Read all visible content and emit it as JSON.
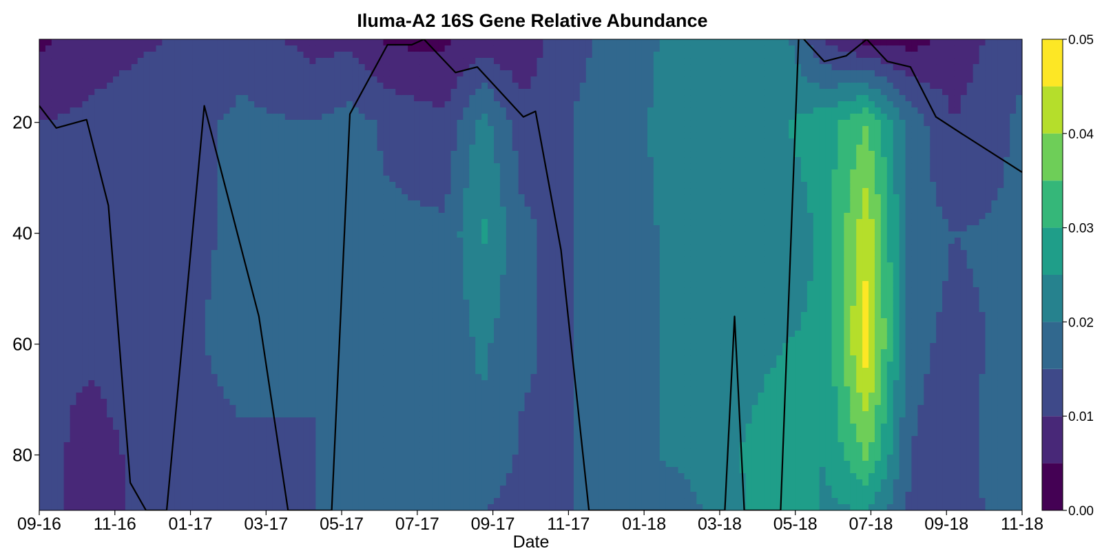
{
  "chart_data": {
    "type": "heatmap",
    "subtype": "filled-contour",
    "title": "Iluma-A2 16S Gene Relative Abundance",
    "xlabel": "Date",
    "ylabel": "",
    "x_tick_labels": [
      "09-16",
      "11-16",
      "01-17",
      "03-17",
      "05-17",
      "07-17",
      "09-17",
      "11-17",
      "01-18",
      "03-18",
      "05-18",
      "07-18",
      "09-18",
      "11-18"
    ],
    "xlim": [
      "2016-09-01",
      "2018-11-20"
    ],
    "y_ticks": [
      20,
      40,
      60,
      80
    ],
    "ylim": [
      90,
      5
    ],
    "y_inverted": true,
    "colorbar": {
      "min": 0.0,
      "max": 0.05,
      "ticks": [
        0.0,
        0.01,
        0.02,
        0.03,
        0.04,
        0.05
      ],
      "tick_labels": [
        "0.00",
        "0.01",
        "0.02",
        "0.03",
        "0.04",
        "0.05"
      ],
      "levels": [
        0.0,
        0.005,
        0.01,
        0.015,
        0.02,
        0.025,
        0.03,
        0.035,
        0.04,
        0.045,
        0.05
      ],
      "colors": [
        "#440154",
        "#482878",
        "#3e4989",
        "#31688e",
        "#26828e",
        "#1f9e89",
        "#35b779",
        "#6ece58",
        "#b5de2b",
        "#fde725"
      ],
      "position": "right"
    },
    "grid": false,
    "mixed_layer_depth_line": {
      "color": "#000000",
      "points": [
        [
          "2016-09-01",
          17
        ],
        [
          "2016-09-15",
          21
        ],
        [
          "2016-10-10",
          19.5
        ],
        [
          "2016-10-28",
          35
        ],
        [
          "2016-11-15",
          85
        ],
        [
          "2016-11-28",
          90
        ],
        [
          "2016-12-15",
          90
        ],
        [
          "2017-01-15",
          17
        ],
        [
          "2017-03-01",
          55
        ],
        [
          "2017-03-25",
          90
        ],
        [
          "2017-04-30",
          90
        ],
        [
          "2017-05-15",
          18.5
        ],
        [
          "2017-06-15",
          6
        ],
        [
          "2017-07-05",
          6
        ],
        [
          "2017-07-15",
          5
        ],
        [
          "2017-08-10",
          11
        ],
        [
          "2017-08-28",
          10
        ],
        [
          "2017-10-05",
          19
        ],
        [
          "2017-10-15",
          18
        ],
        [
          "2017-11-05",
          43
        ],
        [
          "2017-11-28",
          90
        ],
        [
          "2018-03-20",
          90
        ],
        [
          "2018-03-28",
          55
        ],
        [
          "2018-04-05",
          90
        ],
        [
          "2018-05-05",
          90
        ],
        [
          "2018-05-20",
          4
        ],
        [
          "2018-06-10",
          9
        ],
        [
          "2018-06-28",
          8
        ],
        [
          "2018-07-15",
          5
        ],
        [
          "2018-08-01",
          9
        ],
        [
          "2018-08-20",
          10
        ],
        [
          "2018-09-10",
          19
        ],
        [
          "2018-10-01",
          22
        ],
        [
          "2018-11-20",
          29
        ]
      ]
    },
    "grid_dates": [
      "2016-09-01",
      "2016-10-15",
      "2016-12-15",
      "2017-02-15",
      "2017-04-15",
      "2017-05-15",
      "2017-06-15",
      "2017-08-01",
      "2017-09-01",
      "2017-10-05",
      "2017-11-01",
      "2018-01-01",
      "2018-02-15",
      "2018-04-01",
      "2018-05-10",
      "2018-06-10",
      "2018-07-15",
      "2018-08-20",
      "2018-09-25",
      "2018-11-20"
    ],
    "grid_depths": [
      5,
      20,
      40,
      60,
      80,
      90
    ],
    "abundance_grid": [
      [
        0.004,
        0.01,
        0.01,
        0.01,
        0.012,
        0.012
      ],
      [
        0.008,
        0.011,
        0.011,
        0.011,
        0.008,
        0.008
      ],
      [
        0.01,
        0.013,
        0.013,
        0.013,
        0.013,
        0.013
      ],
      [
        0.013,
        0.016,
        0.016,
        0.017,
        0.014,
        0.013
      ],
      [
        0.008,
        0.015,
        0.015,
        0.015,
        0.015,
        0.015
      ],
      [
        0.009,
        0.017,
        0.018,
        0.019,
        0.017,
        0.017
      ],
      [
        0.004,
        0.014,
        0.016,
        0.017,
        0.016,
        0.017
      ],
      [
        0.004,
        0.011,
        0.016,
        0.016,
        0.016,
        0.016
      ],
      [
        0.007,
        0.022,
        0.026,
        0.021,
        0.019,
        0.015
      ],
      [
        0.006,
        0.012,
        0.016,
        0.016,
        0.014,
        0.013
      ],
      [
        0.012,
        0.014,
        0.014,
        0.014,
        0.014,
        0.014
      ],
      [
        0.018,
        0.019,
        0.019,
        0.019,
        0.019,
        0.019
      ],
      [
        0.022,
        0.022,
        0.021,
        0.021,
        0.021,
        0.018
      ],
      [
        0.022,
        0.023,
        0.021,
        0.022,
        0.025,
        0.024
      ],
      [
        0.021,
        0.025,
        0.022,
        0.025,
        0.03,
        0.03
      ],
      [
        0.009,
        0.028,
        0.026,
        0.026,
        0.025,
        0.024
      ],
      [
        0.003,
        0.035,
        0.044,
        0.048,
        0.036,
        0.025
      ],
      [
        0.003,
        0.018,
        0.017,
        0.016,
        0.015,
        0.014
      ],
      [
        0.007,
        0.01,
        0.015,
        0.014,
        0.013,
        0.014
      ],
      [
        0.014,
        0.016,
        0.016,
        0.016,
        0.019,
        0.016
      ]
    ]
  }
}
